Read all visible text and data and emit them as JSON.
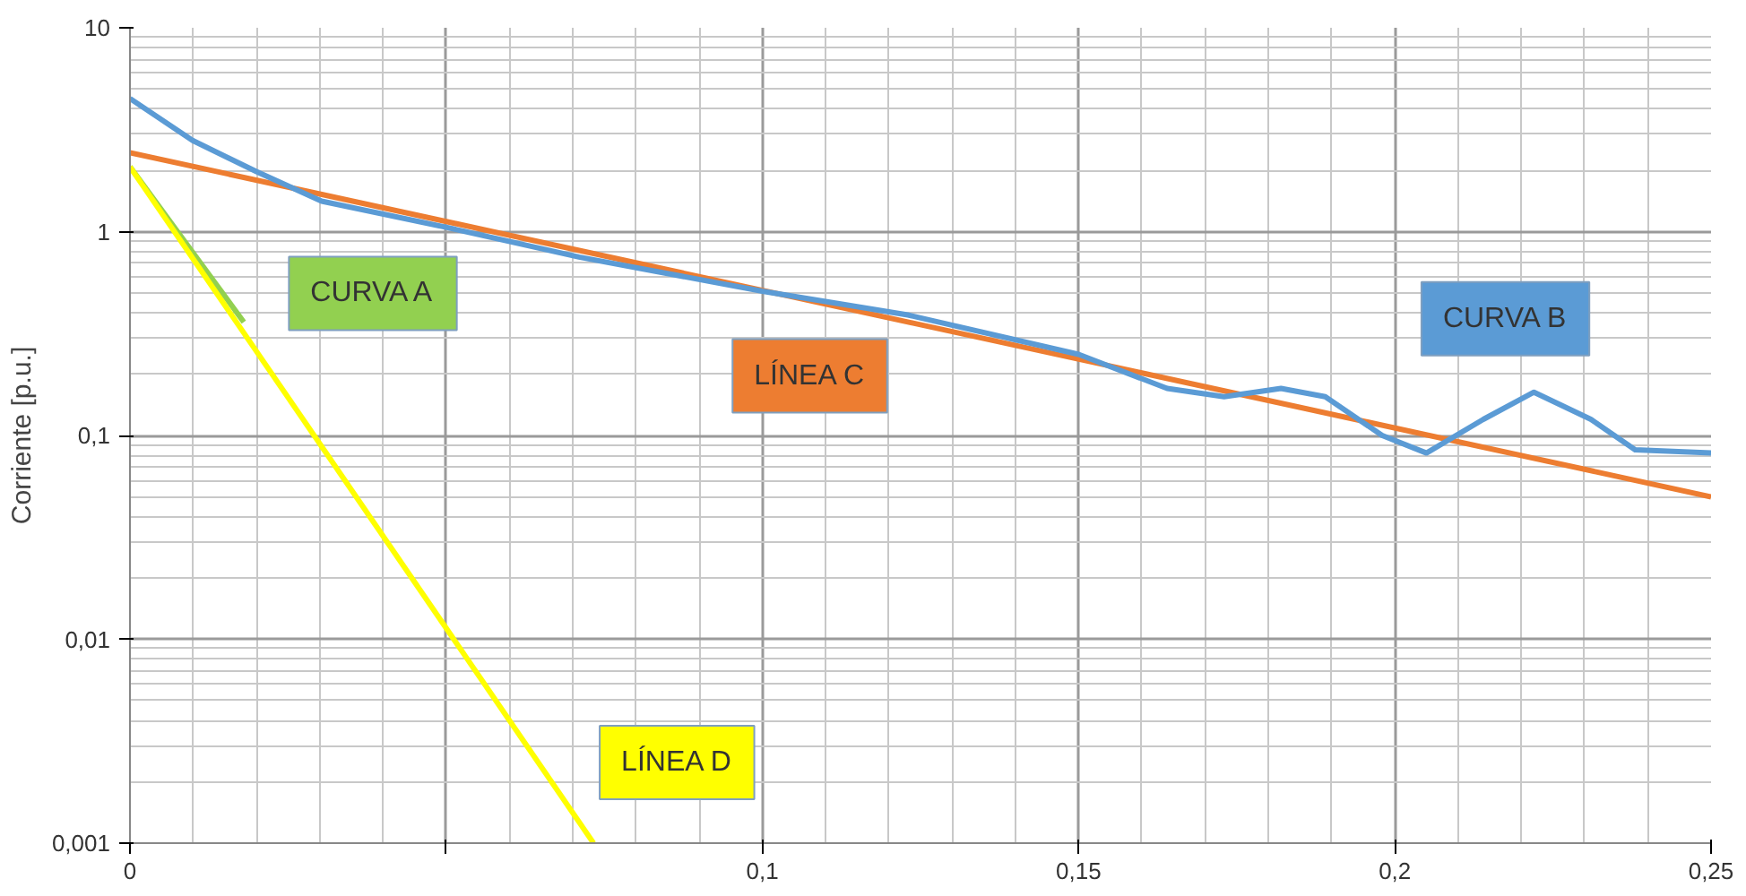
{
  "chart_data": {
    "type": "line",
    "ylabel": "Corriente [p.u.]",
    "log": "y",
    "grid": true,
    "marker": "none",
    "line_style": "solid",
    "xlim": [
      0,
      0.25
    ],
    "ylim": [
      0.001,
      10
    ],
    "xticks": [
      {
        "value": 0,
        "label": "0"
      },
      {
        "value": 0.05,
        "label": null
      },
      {
        "value": 0.1,
        "label": "0,1"
      },
      {
        "value": 0.15,
        "label": "0,15"
      },
      {
        "value": 0.2,
        "label": "0,2"
      },
      {
        "value": 0.25,
        "label": "0,25"
      }
    ],
    "yticks": [
      {
        "value": 0.001,
        "label": "0,001"
      },
      {
        "value": 0.01,
        "label": "0,01"
      },
      {
        "value": 0.1,
        "label": "0,1"
      },
      {
        "value": 1,
        "label": "1"
      },
      {
        "value": 10,
        "label": "10"
      }
    ],
    "series": [
      {
        "name": "CURVA A",
        "color": "#92d050",
        "x": [
          0,
          0.018
        ],
        "values": [
          2.08,
          0.36
        ]
      },
      {
        "name": "LÍNEA C",
        "color": "#ed7d31",
        "x": [
          0,
          0.25
        ],
        "values": [
          2.44,
          0.05
        ]
      },
      {
        "name": "CURVA B",
        "color": "#5b9bd5",
        "x": [
          0,
          0.0099,
          0.02,
          0.0303,
          0.05,
          0.071,
          0.1,
          0.123,
          0.15,
          0.164,
          0.173,
          0.182,
          0.189,
          0.198,
          0.205,
          0.214,
          0.222,
          0.231,
          0.238,
          0.25
        ],
        "values": [
          4.5,
          2.8,
          1.97,
          1.41,
          1.05,
          0.75,
          0.51,
          0.39,
          0.25,
          0.17,
          0.155,
          0.17,
          0.155,
          0.1,
          0.082,
          0.12,
          0.163,
          0.12,
          0.085,
          0.082
        ]
      },
      {
        "name": "LÍNEA D",
        "color": "#ffff00",
        "x": [
          0,
          0.0733
        ],
        "values": [
          2.08,
          0.001
        ]
      }
    ]
  }
}
